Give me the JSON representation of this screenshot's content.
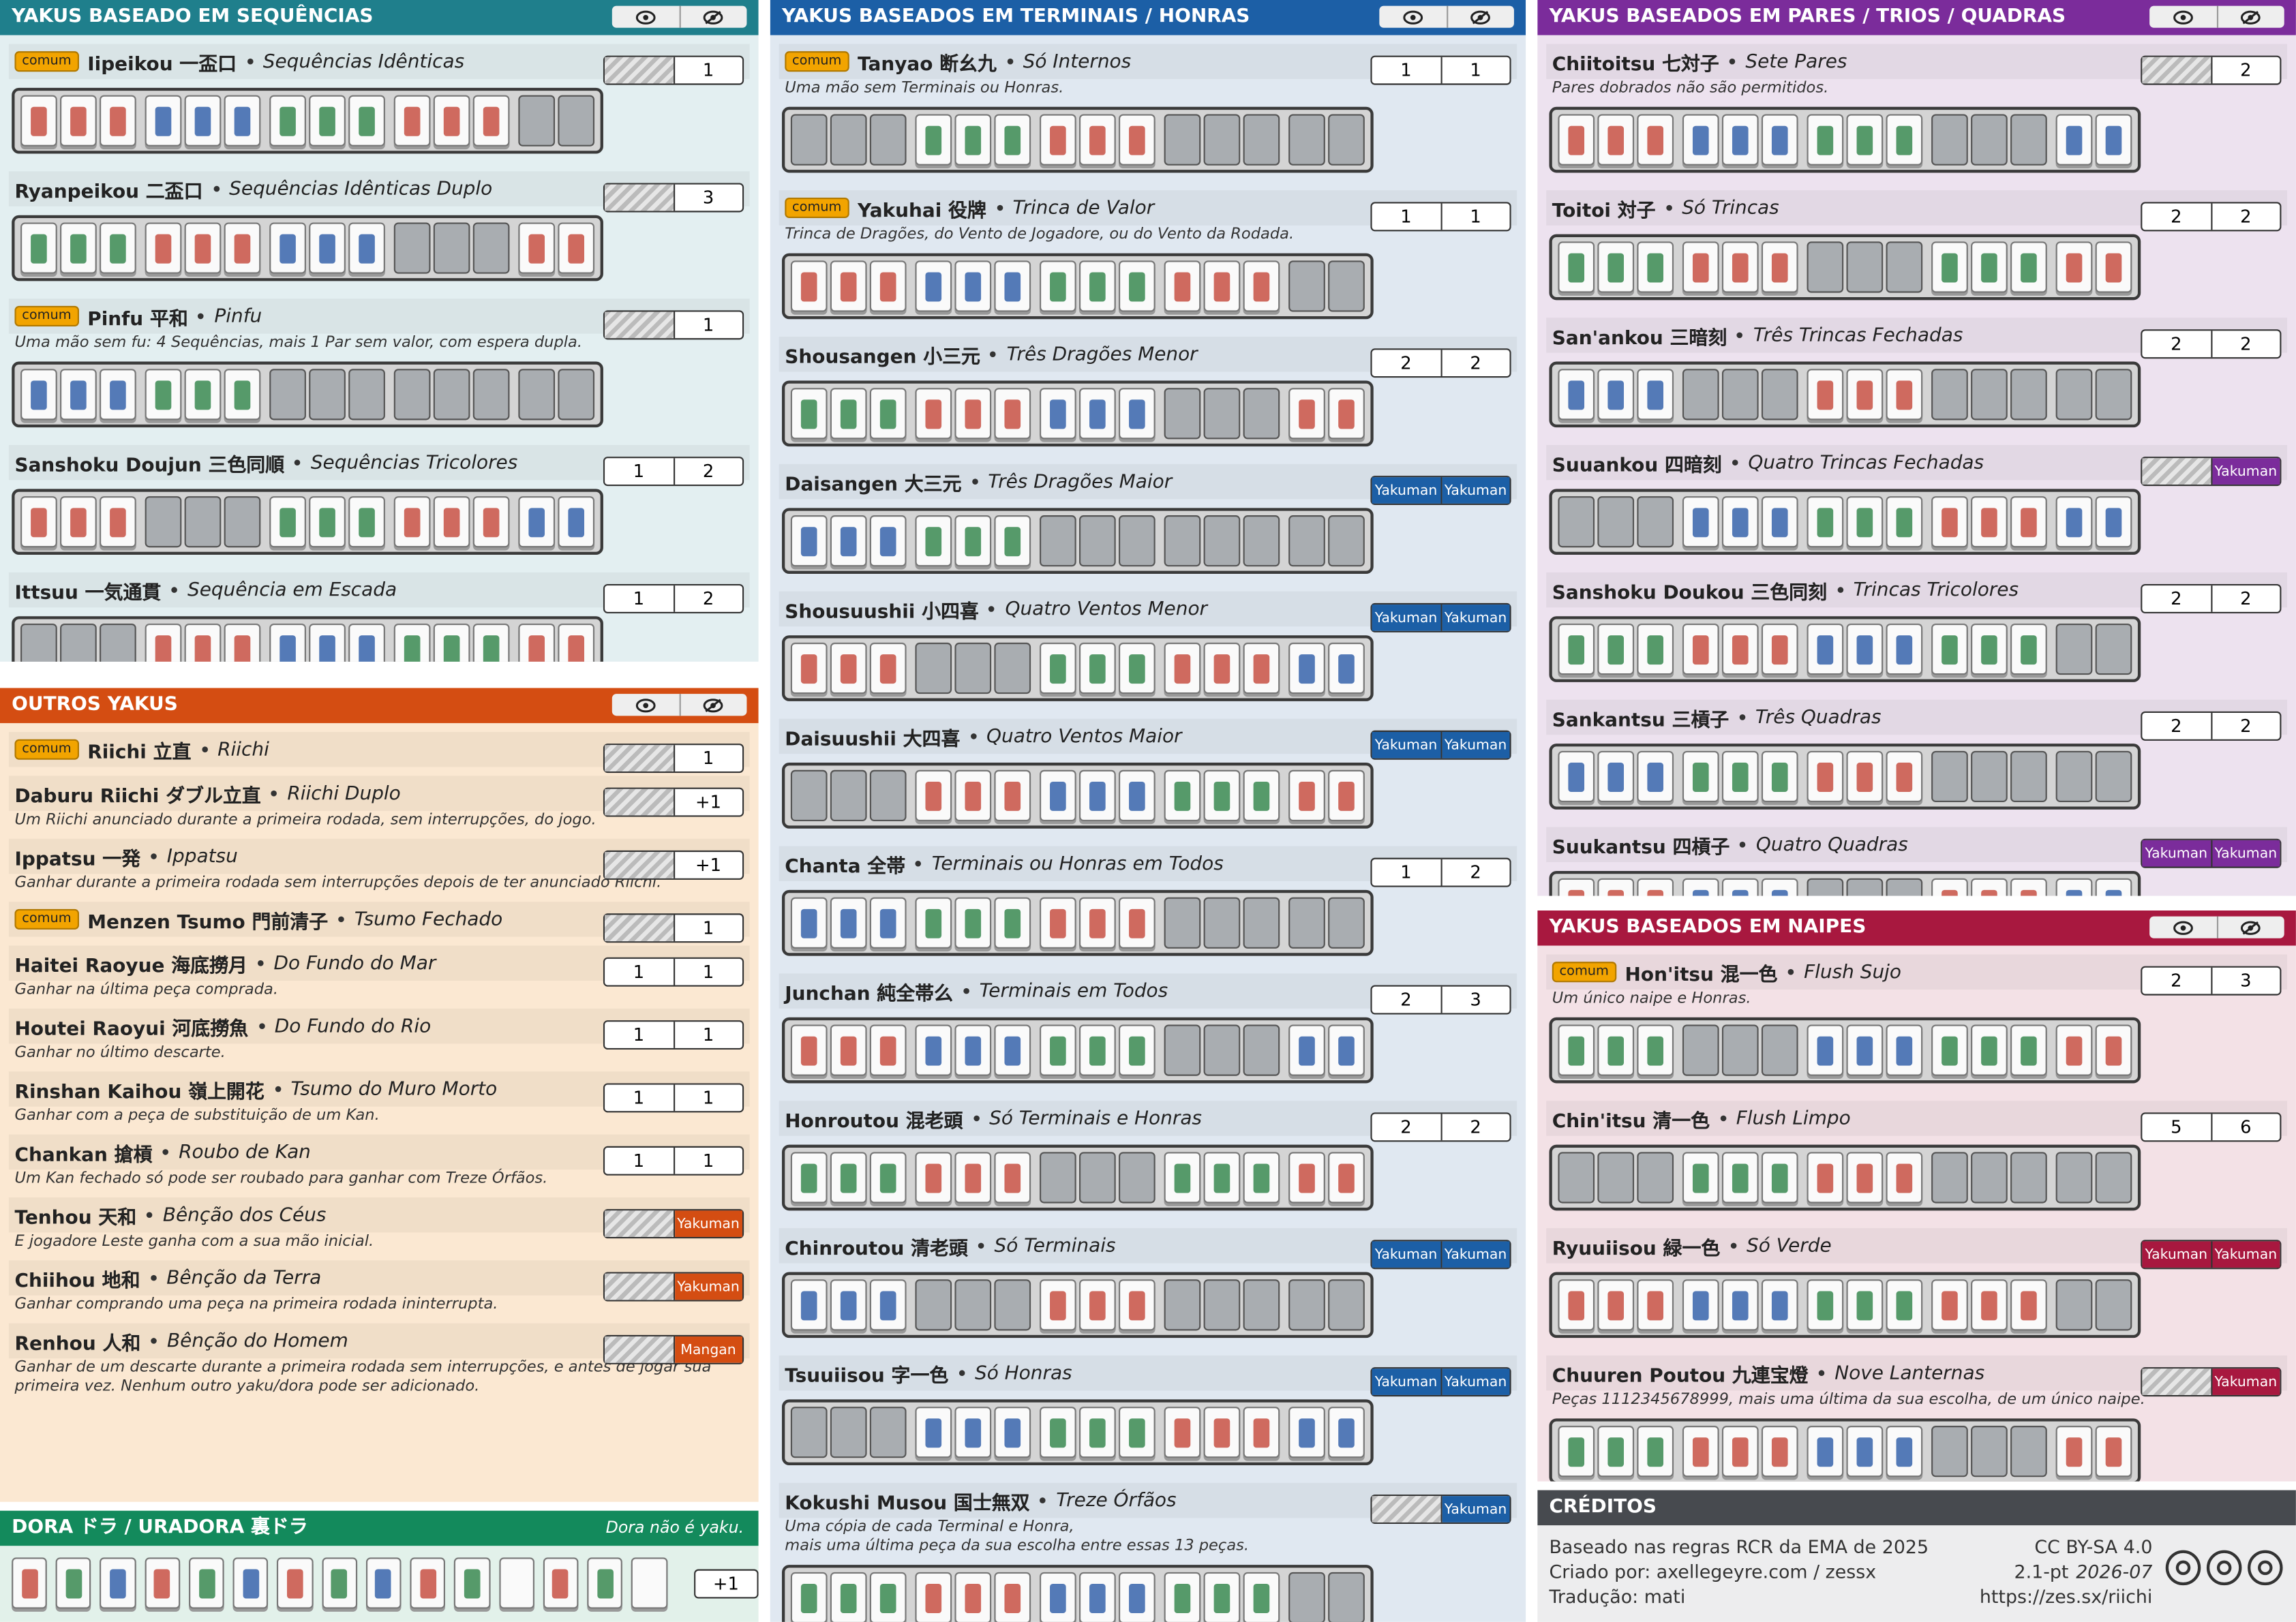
{
  "sections": [
    {
      "title": "YAKUS BASEADO EM SEQUÊNCIAS",
      "color": "#1f7f8c",
      "bg": "#e3eff1",
      "yakus": [
        {
          "tag": "comum",
          "name": "Iipeikou 一盃口",
          "translation": "Sequências Idênticas",
          "han": [
            null,
            1
          ]
        },
        {
          "name": "Ryanpeikou 二盃口",
          "translation": "Sequências Idênticas Duplo",
          "han": [
            null,
            3
          ]
        },
        {
          "tag": "comum",
          "name": "Pinfu 平和",
          "translation": "Pinfu",
          "han": [
            null,
            1
          ],
          "description": "Uma mão sem fu: 4 Sequências, mais 1 Par sem valor, com espera dupla."
        },
        {
          "name": "Sanshoku Doujun 三色同順",
          "translation": "Sequências Tricolores",
          "han": [
            1,
            2
          ]
        },
        {
          "name": "Ittsuu 一気通貫",
          "translation": "Sequência em Escada",
          "han": [
            1,
            2
          ]
        }
      ]
    },
    {
      "title": "OUTROS YAKUS",
      "color": "#d44d12",
      "bg": "#fbe8d2",
      "yakus": [
        {
          "tag": "comum",
          "name": "Riichi 立直",
          "translation": "Riichi",
          "han": [
            null,
            1
          ]
        },
        {
          "name": "Daburu Riichi ダブル立直",
          "translation": "Riichi Duplo",
          "han": [
            null,
            "+1"
          ],
          "description": "Um Riichi anunciado durante a primeira rodada, sem interrupções, do jogo."
        },
        {
          "name": "Ippatsu 一発",
          "translation": "Ippatsu",
          "han": [
            null,
            "+1"
          ],
          "description": "Ganhar durante a primeira rodada sem interrupções depois de ter anunciado Riichi."
        },
        {
          "tag": "comum",
          "name": "Menzen Tsumo 門前清子",
          "translation": "Tsumo Fechado",
          "han": [
            null,
            1
          ]
        },
        {
          "name": "Haitei Raoyue 海底撈月",
          "translation": "Do Fundo do Mar",
          "han": [
            1,
            1
          ],
          "description": "Ganhar na última peça comprada."
        },
        {
          "name": "Houtei Raoyui 河底撈魚",
          "translation": "Do Fundo do Rio",
          "han": [
            1,
            1
          ],
          "description": "Ganhar no último descarte."
        },
        {
          "name": "Rinshan Kaihou 嶺上開花",
          "translation": "Tsumo do Muro Morto",
          "han": [
            1,
            1
          ],
          "description": "Ganhar com a peça de substituição de um Kan."
        },
        {
          "name": "Chankan 搶槓",
          "translation": "Roubo de Kan",
          "han": [
            1,
            1
          ],
          "description": "Um Kan fechado só pode ser roubado para ganhar com Treze Órfãos."
        },
        {
          "name": "Tenhou 天和",
          "translation": "Bênção dos Céus",
          "han": [
            null,
            "Yakuman"
          ],
          "description": "E jogadore Leste ganha com a sua mão inicial."
        },
        {
          "name": "Chiihou 地和",
          "translation": "Bênção da Terra",
          "han": [
            null,
            "Yakuman"
          ],
          "description": "Ganhar comprando uma peça na primeira rodada ininterrupta."
        },
        {
          "name": "Renhou 人和",
          "translation": "Bênção do Homem",
          "han": [
            null,
            "Mangan"
          ],
          "description": "Ganhar de um descarte durante a primeira rodada sem interrupções, e antes de jogar sua primeira vez. Nenhum outro yaku/dora pode ser adicionado."
        }
      ]
    },
    {
      "title": "YAKUS BASEADOS EM TERMINAIS / HONRAS",
      "color": "#1c5fa6",
      "bg": "#e0e8f1",
      "yakus": [
        {
          "tag": "comum",
          "name": "Tanyao 断幺九",
          "translation": "Só Internos",
          "han": [
            1,
            1
          ],
          "description": "Uma mão sem Terminais ou Honras."
        },
        {
          "tag": "comum",
          "name": "Yakuhai 役牌",
          "translation": "Trinca de Valor",
          "han": [
            1,
            1
          ],
          "description": "Trinca de Dragões, do Vento de Jogadore, ou do Vento da Rodada."
        },
        {
          "name": "Shousangen 小三元",
          "translation": "Três Dragões Menor",
          "han": [
            2,
            2
          ]
        },
        {
          "name": "Daisangen 大三元",
          "translation": "Três Dragões Maior",
          "han": [
            "Yakuman",
            "Yakuman"
          ]
        },
        {
          "name": "Shousuushii 小四喜",
          "translation": "Quatro Ventos Menor",
          "han": [
            "Yakuman",
            "Yakuman"
          ]
        },
        {
          "name": "Daisuushii 大四喜",
          "translation": "Quatro Ventos Maior",
          "han": [
            "Yakuman",
            "Yakuman"
          ]
        },
        {
          "name": "Chanta 全帯",
          "translation": "Terminais ou Honras em Todos",
          "han": [
            1,
            2
          ]
        },
        {
          "name": "Junchan 純全帯么",
          "translation": "Terminais em Todos",
          "han": [
            2,
            3
          ]
        },
        {
          "name": "Honroutou 混老頭",
          "translation": "Só Terminais e Honras",
          "han": [
            2,
            2
          ]
        },
        {
          "name": "Chinroutou 清老頭",
          "translation": "Só Terminais",
          "han": [
            "Yakuman",
            "Yakuman"
          ]
        },
        {
          "name": "Tsuuiisou 字一色",
          "translation": "Só Honras",
          "han": [
            "Yakuman",
            "Yakuman"
          ]
        },
        {
          "name": "Kokushi Musou 国士無双",
          "translation": "Treze Órfãos",
          "han": [
            null,
            "Yakuman"
          ],
          "description": "Uma cópia de cada Terminal e Honra,\nmais uma última peça da sua escolha entre essas 13 peças."
        }
      ]
    },
    {
      "title": "YAKUS BASEADOS EM PARES / TRIOS / QUADRAS",
      "color": "#7b2c9b",
      "bg": "#ede2ef",
      "yakus": [
        {
          "name": "Chiitoitsu 七対子",
          "translation": "Sete Pares",
          "han": [
            null,
            2
          ],
          "description": "Pares dobrados não são permitidos."
        },
        {
          "name": "Toitoi 対子",
          "translation": "Só Trincas",
          "han": [
            2,
            2
          ]
        },
        {
          "name": "San'ankou 三暗刻",
          "translation": "Três Trincas Fechadas",
          "han": [
            2,
            2
          ]
        },
        {
          "name": "Suuankou 四暗刻",
          "translation": "Quatro Trincas Fechadas",
          "han": [
            null,
            "Yakuman"
          ]
        },
        {
          "name": "Sanshoku Doukou 三色同刻",
          "translation": "Trincas Tricolores",
          "han": [
            2,
            2
          ]
        },
        {
          "name": "Sankantsu 三槓子",
          "translation": "Três Quadras",
          "han": [
            2,
            2
          ]
        },
        {
          "name": "Suukantsu 四槓子",
          "translation": "Quatro Quadras",
          "han": [
            "Yakuman",
            "Yakuman"
          ]
        }
      ]
    },
    {
      "title": "YAKUS BASEADOS EM NAIPES",
      "color": "#a8183f",
      "bg": "#f3e1e6",
      "yakus": [
        {
          "tag": "comum",
          "name": "Hon'itsu 混一色",
          "translation": "Flush Sujo",
          "han": [
            2,
            3
          ],
          "description": "Um único naipe e Honras."
        },
        {
          "name": "Chin'itsu 清一色",
          "translation": "Flush Limpo",
          "han": [
            5,
            6
          ]
        },
        {
          "name": "Ryuuiisou 緑一色",
          "translation": "Só Verde",
          "han": [
            "Yakuman",
            "Yakuman"
          ]
        },
        {
          "name": "Chuuren Poutou 九連宝燈",
          "translation": "Nove Lanternas",
          "han": [
            null,
            "Yakuman"
          ],
          "description": "Peças 1112345678999, mais uma última da sua escolha, de um único naipe."
        }
      ]
    }
  ],
  "dora": {
    "title": "DORA ドラ / URADORA 裏ドラ",
    "note": "Dora não é yaku.",
    "value": "+1",
    "color": "#138a5c"
  },
  "credits": {
    "title": "CRÉDITOS",
    "color": "#474a4f",
    "left": [
      "Baseado nas regras RCR da EMA de 2025",
      "Criado por: axellegeyre.com / zessx",
      "Tradução: mati"
    ],
    "license": "CC BY-SA 4.0",
    "version": "2.1-pt",
    "date": "2026-07",
    "url": "https://zes.sx/riichi"
  }
}
